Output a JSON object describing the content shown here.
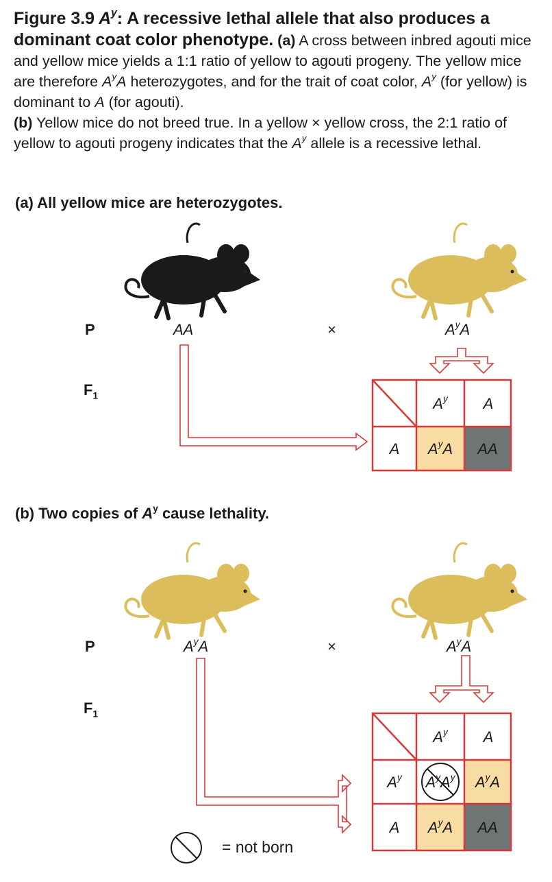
{
  "caption": {
    "figure_label": "Figure 3.9",
    "allele_sym": "A",
    "allele_sup": "y",
    "title_rest": ": A recessive lethal allele that also produces a dominant coat color phenotype.",
    "part_a_label": "(a)",
    "part_a_text_1": "A cross between inbred agouti mice and yellow mice yields a 1:1 ratio of yellow to agouti progeny. The yellow mice are therefore",
    "part_a_text_2": "heterozygotes, and for the trait of coat color,",
    "part_a_text_3": "(for yellow) is dominant to",
    "part_a_text_4": "(for agouti).",
    "part_b_label": "(b)",
    "part_b_text_1": "Yellow mice do not breed true. In a yellow × yellow cross, the 2:1 ratio of yellow to agouti progeny indicates that the",
    "part_b_text_2": "allele is a recessive lethal."
  },
  "panel_a": {
    "title": "(a)  All yellow mice are heterozygotes.",
    "p_label": "P",
    "f1_label": "F",
    "f1_sub": "1",
    "parent1_genotype": "AA",
    "cross_symbol": "×",
    "parent2_genotype": "A",
    "parent2_sup": "y",
    "parent2_tail": "A",
    "mouse_left_color": "agouti",
    "mouse_right_color": "yellow",
    "punnett": {
      "col_headers": [
        "Ay",
        "A"
      ],
      "row_headers": [
        "A"
      ],
      "cells": [
        [
          "AyA",
          "AA"
        ]
      ]
    }
  },
  "panel_b": {
    "title_1": "(b)  Two copies of ",
    "title_sym": "A",
    "title_sup": "y",
    "title_2": " cause lethality.",
    "p_label": "P",
    "f1_label": "F",
    "f1_sub": "1",
    "parent1_genotype": "AyA",
    "cross_symbol": "×",
    "parent2_genotype": "AyA",
    "punnett": {
      "col_headers": [
        "Ay",
        "A"
      ],
      "row_headers": [
        "Ay",
        "A"
      ],
      "cells": [
        [
          "AyAy",
          "AyA"
        ],
        [
          "AyA",
          "AA"
        ]
      ]
    },
    "legend_text": "= not born"
  },
  "colors": {
    "frame_red": "#d9383a",
    "yellow_cell": "#f8dca2",
    "gray_cell": "#6f7474",
    "mouse_yellow": "#e4c462",
    "mouse_gray": "#6b6b6b"
  }
}
